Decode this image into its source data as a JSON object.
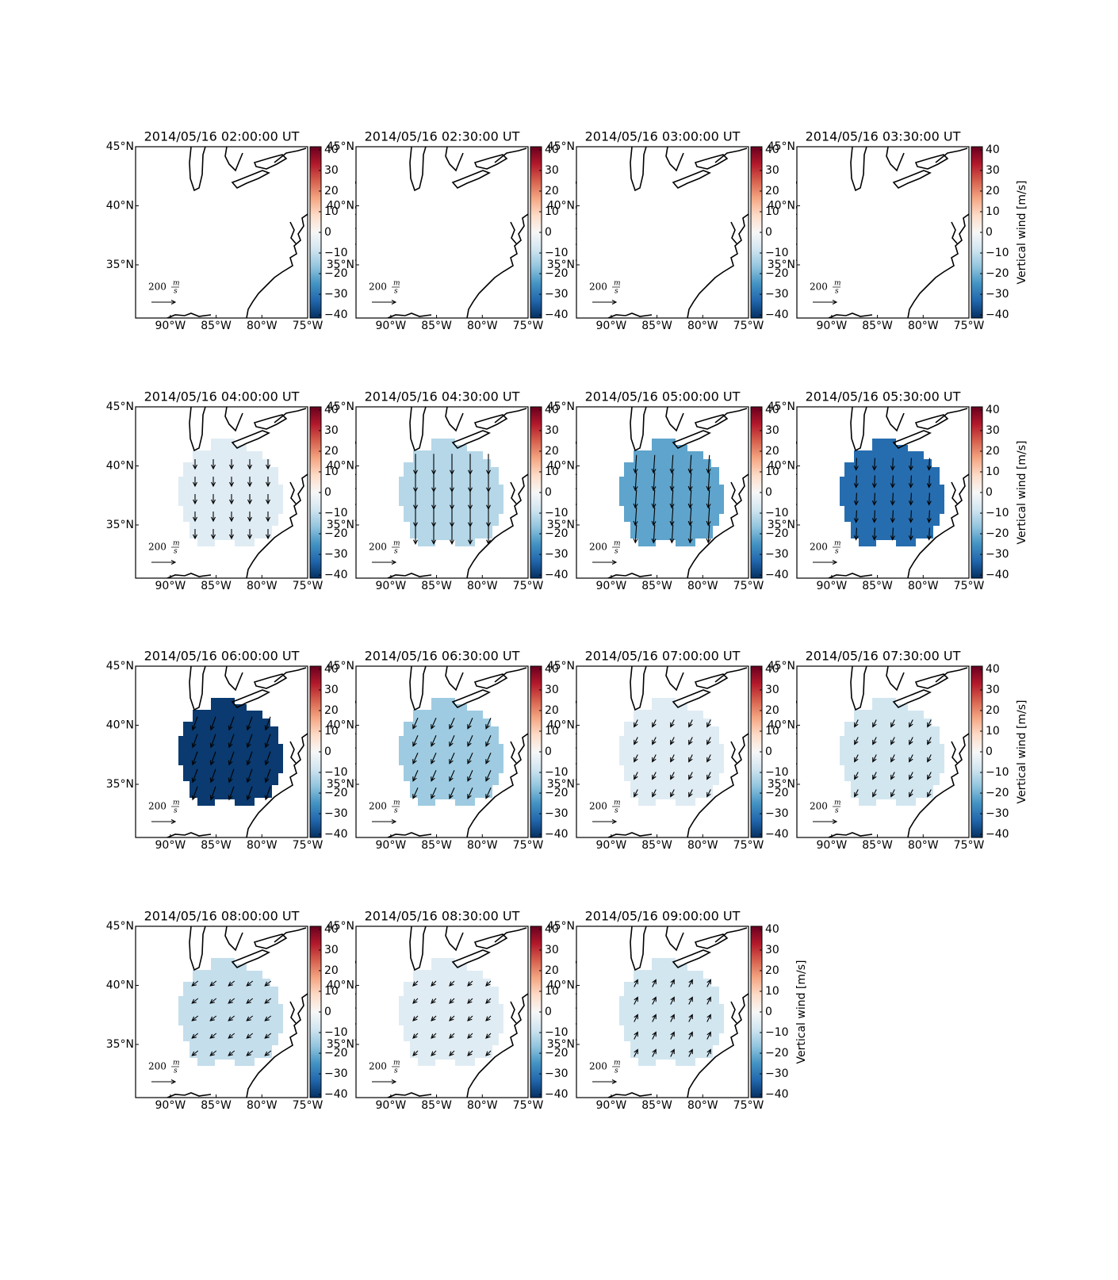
{
  "chart_data": {
    "type": "map",
    "colorbar_label": "Vertical wind [m/s]",
    "xlim": [
      -93.8,
      -75
    ],
    "xticks": [
      {
        "value": -90,
        "label": "90°W"
      },
      {
        "value": -85,
        "label": "85°W"
      },
      {
        "value": -80,
        "label": "80°W"
      },
      {
        "value": -75,
        "label": "75°W"
      }
    ],
    "ylim": [
      30.5,
      45
    ],
    "yticks": [
      {
        "value": 35,
        "label": "35°N"
      },
      {
        "value": 40,
        "label": "40°N"
      },
      {
        "value": 45,
        "label": "45°N"
      }
    ],
    "clim": [
      -41.5,
      41.5
    ],
    "cticks": [
      {
        "value": -40,
        "label": "−40"
      },
      {
        "value": -30,
        "label": "−30"
      },
      {
        "value": -20,
        "label": "−20"
      },
      {
        "value": -10,
        "label": "−10"
      },
      0,
      10,
      20,
      30,
      40
    ],
    "cmap_colors": [
      "#053061",
      "#2166ac",
      "#4393c3",
      "#92c5de",
      "#d1e5f0",
      "#f7f7f7",
      "#fddbc7",
      "#f4a582",
      "#d6604d",
      "#b2182b",
      "#67001f"
    ],
    "quiver_key": {
      "value": 200,
      "label": "200"
    },
    "quiver_units": {
      "num": "m",
      "den": "s"
    },
    "panels": [
      {
        "title": "2014/05/16 02:00:00 UT",
        "value": null,
        "u": null,
        "v": null
      },
      {
        "title": "2014/05/16 02:30:00 UT",
        "value": null,
        "u": null,
        "v": null
      },
      {
        "title": "2014/05/16 03:00:00 UT",
        "value": null,
        "u": null,
        "v": null
      },
      {
        "title": "2014/05/16 03:30:00 UT",
        "value": null,
        "u": null,
        "v": null
      },
      {
        "title": "2014/05/16 04:00:00 UT",
        "value": -5,
        "u": 0,
        "v": -80
      },
      {
        "title": "2014/05/16 04:30:00 UT",
        "value": -12,
        "u": 0,
        "v": -170
      },
      {
        "title": "2014/05/16 05:00:00 UT",
        "value": -22,
        "u": -10,
        "v": -150
      },
      {
        "title": "2014/05/16 05:30:00 UT",
        "value": -32,
        "u": -5,
        "v": -100
      },
      {
        "title": "2014/05/16 06:00:00 UT",
        "value": -40,
        "u": -40,
        "v": -110
      },
      {
        "title": "2014/05/16 06:30:00 UT",
        "value": -15,
        "u": -40,
        "v": -90
      },
      {
        "title": "2014/05/16 07:00:00 UT",
        "value": -5,
        "u": -30,
        "v": -60
      },
      {
        "title": "2014/05/16 07:30:00 UT",
        "value": -8,
        "u": -30,
        "v": -60
      },
      {
        "title": "2014/05/16 08:00:00 UT",
        "value": -10,
        "u": -50,
        "v": -40
      },
      {
        "title": "2014/05/16 08:30:00 UT",
        "value": -5,
        "u": -40,
        "v": -40
      },
      {
        "title": "2014/05/16 09:00:00 UT",
        "value": -8,
        "u": 30,
        "v": 60
      }
    ]
  }
}
